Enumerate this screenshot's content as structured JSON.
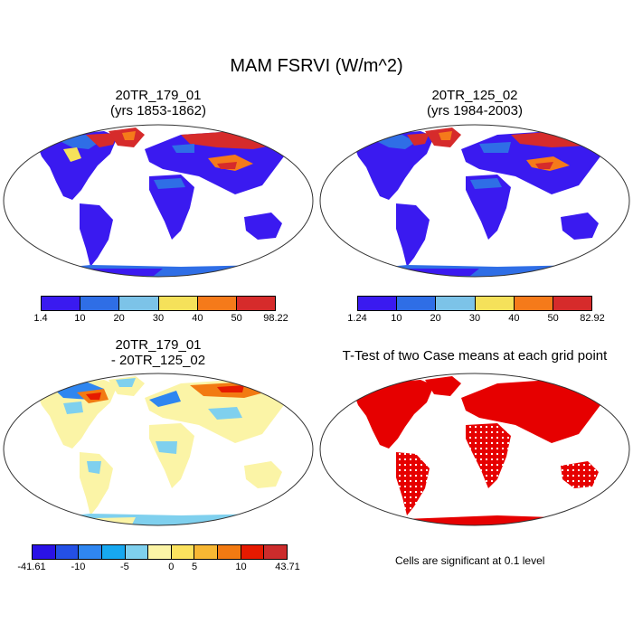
{
  "title": "MAM FSRVI (W/m^2)",
  "panels": [
    {
      "id": "case1",
      "title_line1": "20TR_179_01",
      "title_line2": "(yrs 1853-1862)"
    },
    {
      "id": "case2",
      "title_line1": "20TR_125_02",
      "title_line2": "(yrs 1984-2003)"
    },
    {
      "id": "diff",
      "title_line1": "20TR_179_01",
      "title_line2": "- 20TR_125_02"
    },
    {
      "id": "ttest",
      "title_line1": "T-Test of two Case means at each grid point"
    }
  ],
  "colorbars": {
    "case1": {
      "colors": [
        "#3a1af0",
        "#2f6ee6",
        "#7cc3e8",
        "#f5e15a",
        "#f57a1a",
        "#d62b2b"
      ],
      "labels": [
        "1.4",
        "10",
        "20",
        "30",
        "40",
        "50",
        "98.22"
      ]
    },
    "case2": {
      "colors": [
        "#3a1af0",
        "#2f6ee6",
        "#7cc3e8",
        "#f5e15a",
        "#f57a1a",
        "#d62b2b"
      ],
      "labels": [
        "1.24",
        "10",
        "20",
        "30",
        "40",
        "50",
        "82.92"
      ]
    },
    "diff": {
      "colors": [
        "#2a12e6",
        "#2450e6",
        "#2f86f0",
        "#17a8f0",
        "#7fd0ee",
        "#fbf4a6",
        "#fbe25e",
        "#f7b733",
        "#f27a12",
        "#e61a00",
        "#cc2c2c"
      ],
      "labels": [
        "-41.61",
        "-10",
        "-5",
        "0",
        "5",
        "10",
        "43.71"
      ]
    }
  },
  "note": "Cells are significant at 0.1 level",
  "map_colors": {
    "ocean": "#ffffff",
    "case_land": "#3a1af0",
    "case_mid": "#2f6ee6",
    "case_warm": "#f57a1a",
    "case_hot": "#d62b2b",
    "case_yellow": "#f5e15a",
    "case_light": "#7cc3e8",
    "diff_land": "#fbf4a6",
    "diff_light": "#7fd0ee",
    "diff_blue": "#2f86f0",
    "diff_orange": "#f27a12",
    "diff_red": "#e61a00",
    "sig": "#e60000"
  }
}
